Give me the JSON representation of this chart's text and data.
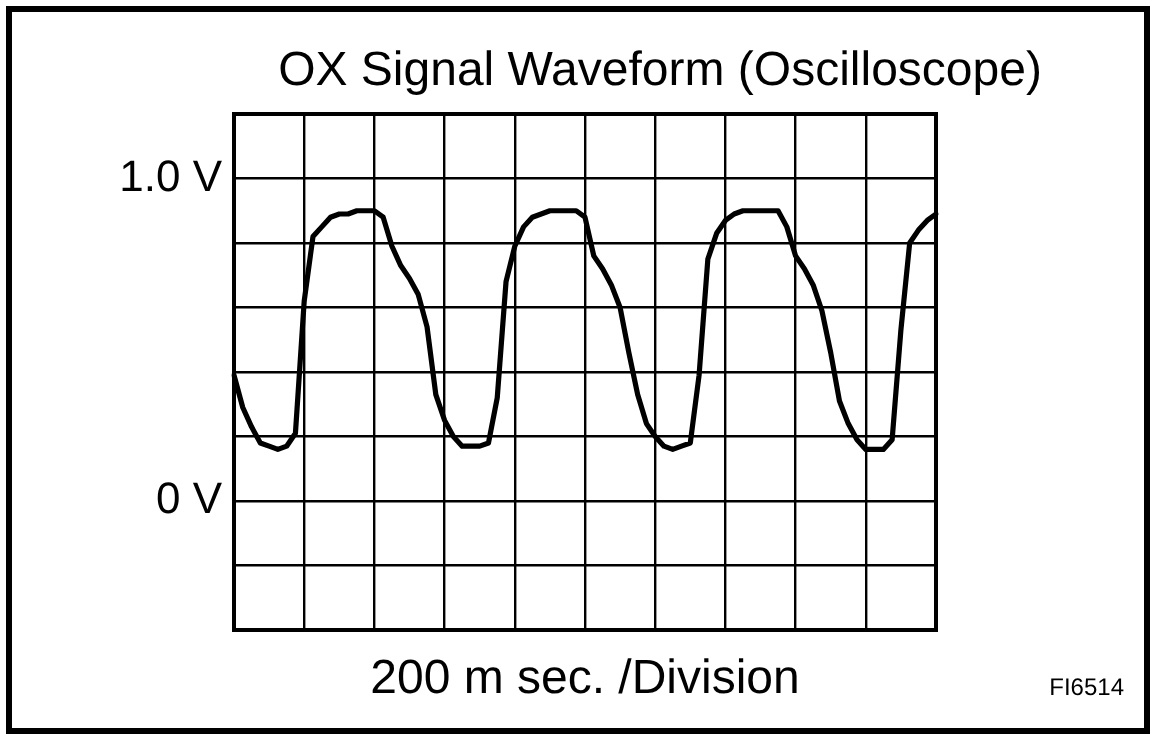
{
  "chart_data": {
    "type": "line",
    "title": "OX Signal Waveform (Oscilloscope)",
    "xlabel": "200 m sec. /Division",
    "annotations": [
      "FI6514"
    ],
    "categories": [
      null,
      null,
      null,
      null,
      null,
      null,
      null,
      null,
      null,
      null,
      null,
      null,
      null,
      null,
      null,
      null,
      null,
      null,
      null,
      null,
      null,
      null,
      null,
      null,
      null,
      null,
      null,
      null,
      null,
      null,
      null,
      null,
      null,
      null,
      null,
      null,
      null,
      null,
      null,
      null,
      null,
      null,
      null,
      null,
      null,
      null,
      null,
      null,
      null,
      null,
      null,
      null,
      null,
      null,
      null,
      null,
      null,
      null,
      null,
      null,
      null,
      null,
      null,
      null,
      null,
      null,
      null,
      null,
      null,
      null,
      null,
      null,
      null,
      null,
      null,
      null,
      null,
      null,
      null,
      null,
      null
    ],
    "series": [
      {
        "color": "#000000",
        "values": [
          0.39,
          0.29,
          0.23,
          0.18,
          0.17,
          0.16,
          0.17,
          0.21,
          0.62,
          0.82,
          0.85,
          0.88,
          0.89,
          0.89,
          0.9,
          0.9,
          0.9,
          0.88,
          0.79,
          0.73,
          0.69,
          0.64,
          0.54,
          0.33,
          0.25,
          0.2,
          0.17,
          0.17,
          0.17,
          0.18,
          0.32,
          0.68,
          0.79,
          0.85,
          0.88,
          0.89,
          0.9,
          0.9,
          0.9,
          0.9,
          0.88,
          0.76,
          0.72,
          0.67,
          0.6,
          0.46,
          0.33,
          0.24,
          0.2,
          0.17,
          0.16,
          0.17,
          0.18,
          0.39,
          0.75,
          0.83,
          0.87,
          0.89,
          0.9,
          0.9,
          0.9,
          0.9,
          0.9,
          0.85,
          0.76,
          0.72,
          0.67,
          0.59,
          0.46,
          0.31,
          0.24,
          0.19,
          0.16,
          0.16,
          0.16,
          0.19,
          0.53,
          0.8,
          0.84,
          0.87,
          0.89
        ]
      }
    ],
    "ylim": [
      -0.4,
      1.2
    ],
    "yticks": [
      {
        "value": -0.4,
        "label": null
      },
      {
        "value": -0.2,
        "label": null
      },
      {
        "value": 0,
        "label": "0 V"
      },
      {
        "value": 0.2,
        "label": null
      },
      {
        "value": 0.4,
        "label": null
      },
      {
        "value": 0.6,
        "label": null
      },
      {
        "value": 0.8,
        "label": null
      },
      {
        "value": 1.0,
        "label": "1.0 V"
      },
      {
        "value": 1.2,
        "label": null
      }
    ],
    "tick_labels": "y",
    "grid": true,
    "legend": false,
    "marker": "none",
    "line_style": "solid"
  }
}
